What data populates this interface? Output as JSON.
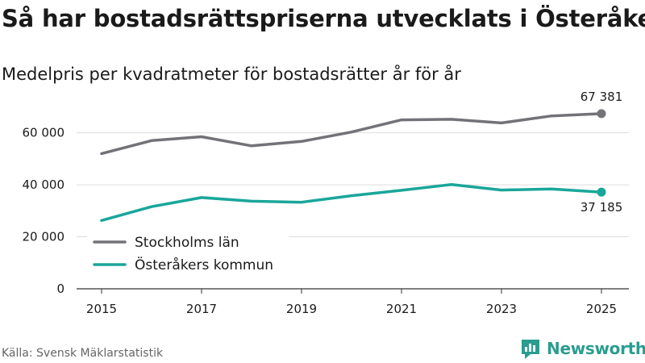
{
  "title": "Så har bostadsrättspriserna utvecklats i Österåker",
  "subtitle": "Medelpris per kvadratmeter för bostadsrätter år för år",
  "source": "Källa: Svensk Mäklarstatistik",
  "brand": "Newsworthy",
  "colors": {
    "stockholm": "#737278",
    "osteraker": "#1aa69a",
    "grid": "#dddddd",
    "axis": "#333333",
    "brand": "#2a9d8f"
  },
  "chart_data": {
    "type": "line",
    "title": "Så har bostadsrättspriserna utvecklats i Österåker",
    "subtitle": "Medelpris per kvadratmeter för bostadsrätter år för år",
    "xlabel": "",
    "ylabel": "",
    "x": [
      2015,
      2016,
      2017,
      2018,
      2019,
      2020,
      2021,
      2022,
      2023,
      2024,
      2025
    ],
    "xticks": [
      "2015",
      "2017",
      "2019",
      "2021",
      "2023",
      "2025"
    ],
    "yticks": [
      0,
      20000,
      40000,
      60000
    ],
    "ytick_labels": [
      "0",
      "20 000",
      "40 000",
      "60 000"
    ],
    "ylim": [
      0,
      72000
    ],
    "grid": true,
    "legend": "bottom-left",
    "series": [
      {
        "name": "Stockholms län",
        "color_key": "stockholm",
        "values": [
          52000,
          57000,
          58500,
          55000,
          56700,
          60300,
          65000,
          65200,
          63800,
          66500,
          67381
        ],
        "end_label": "67 381"
      },
      {
        "name": "Österåkers kommun",
        "color_key": "osteraker",
        "values": [
          26300,
          31600,
          35100,
          33700,
          33300,
          35800,
          37900,
          40100,
          38000,
          38400,
          37185
        ],
        "end_label": "37 185"
      }
    ]
  }
}
